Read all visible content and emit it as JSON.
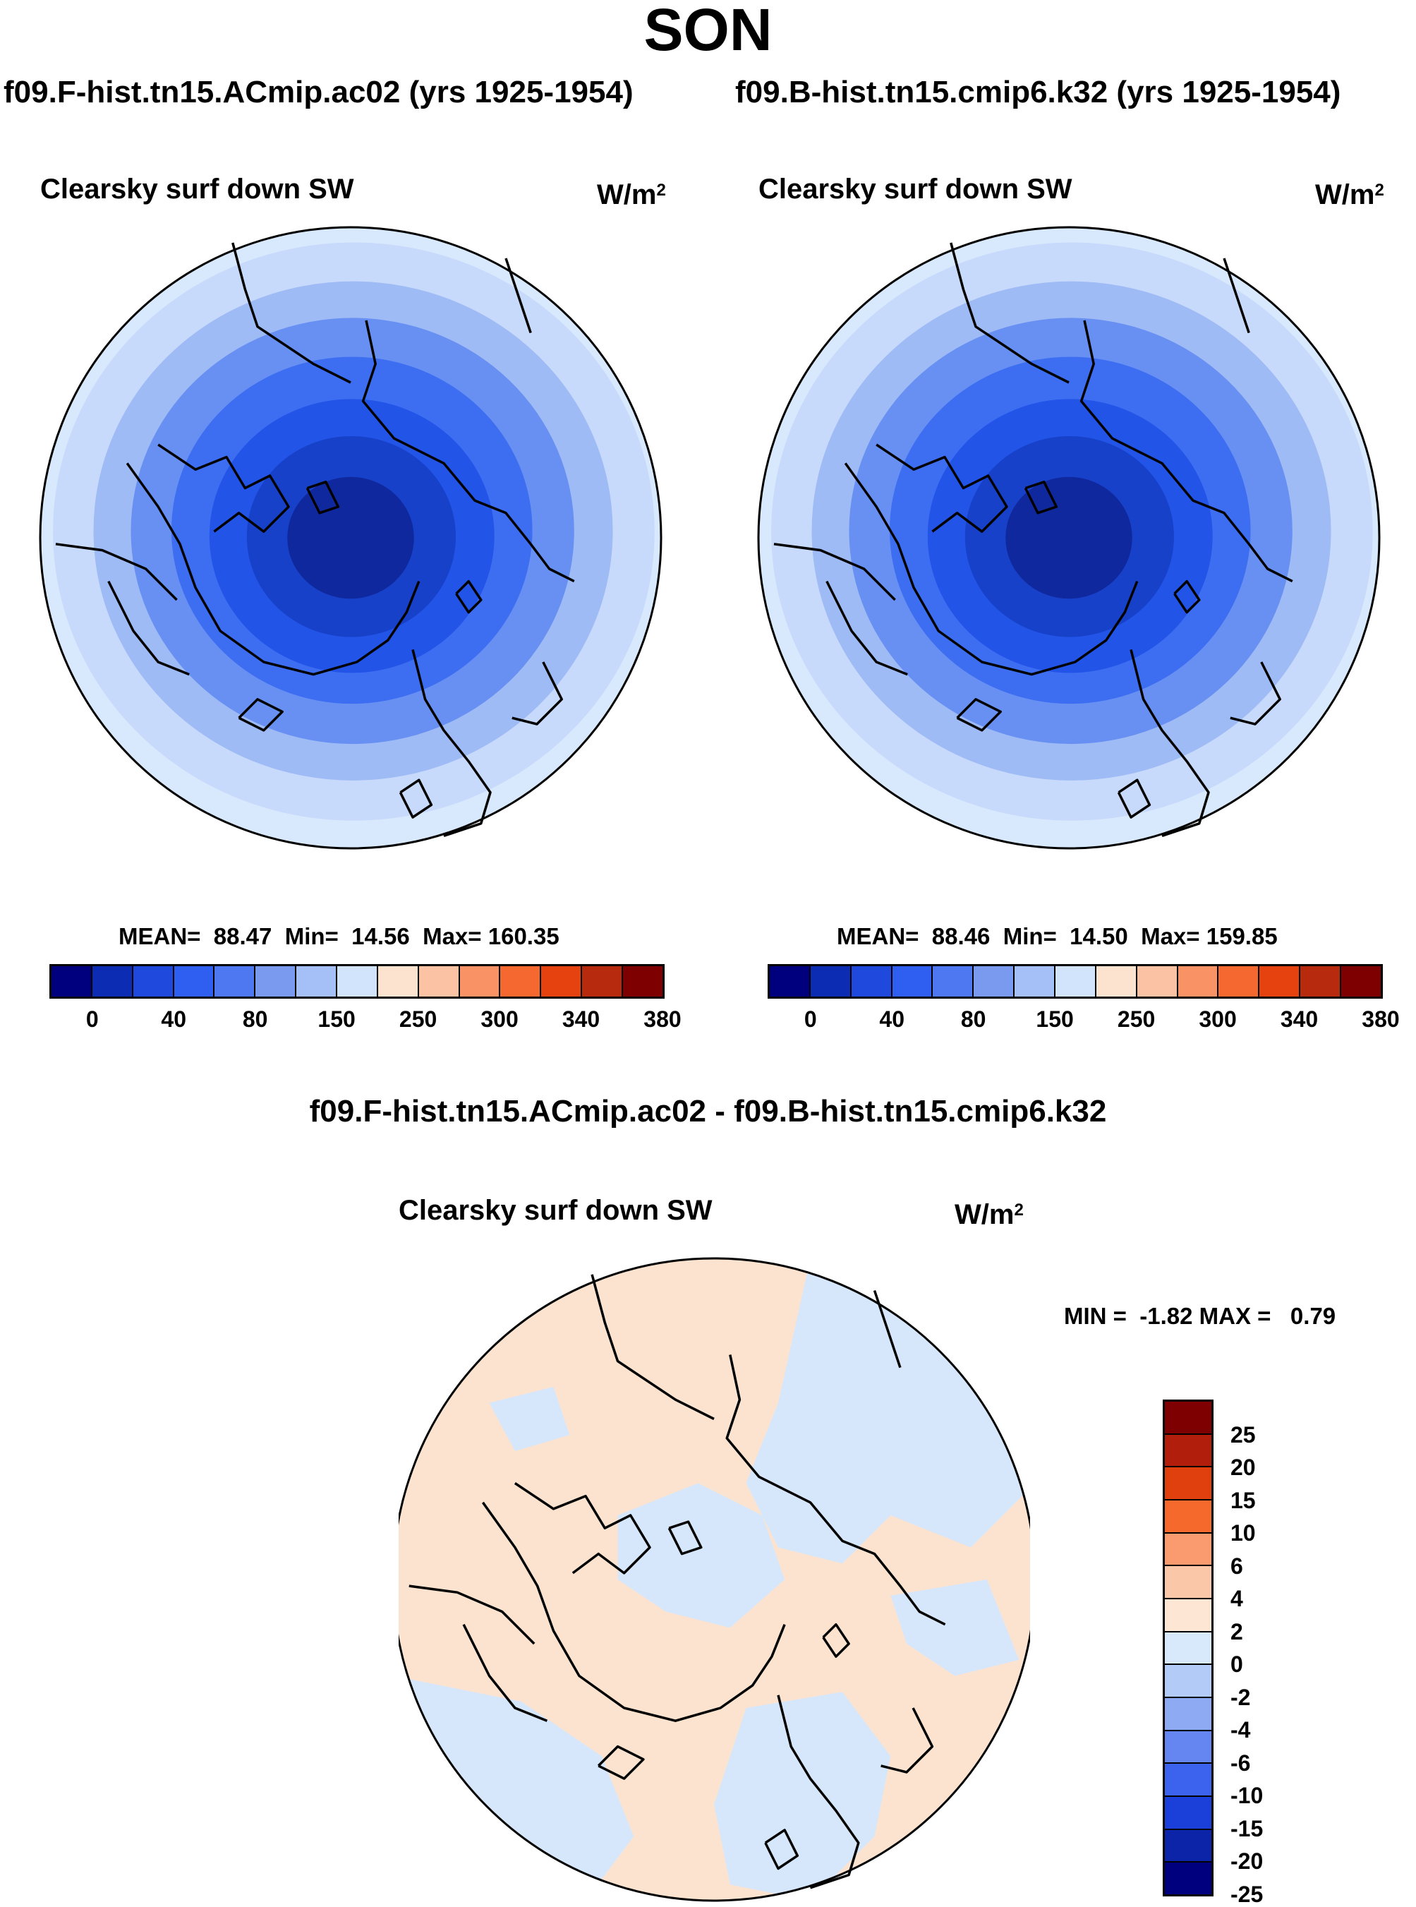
{
  "season": "SON",
  "panels": [
    {
      "title": "f09.F-hist.tn15.ACmip.ac02 (yrs 1925-1954)",
      "variable": "Clearsky surf down SW",
      "units": "W/m",
      "units_sup": "2",
      "stats": {
        "mean_label": "MEAN=",
        "mean": "88.47",
        "min_label": "Min=",
        "min": "14.56",
        "max_label": "Max=",
        "max": "160.35"
      },
      "field": {
        "type": "polar-radial",
        "ring_levels_from_center": [
          20,
          40,
          60,
          80,
          100,
          150,
          200
        ],
        "ring_colors": [
          "#10289e",
          "#1741c8",
          "#2254e8",
          "#3d6ef2",
          "#6890f2",
          "#9fbbf5",
          "#c8dafb",
          "#d9e9fd"
        ]
      }
    },
    {
      "title": "f09.B-hist.tn15.cmip6.k32 (yrs 1925-1954)",
      "variable": "Clearsky surf down SW",
      "units": "W/m",
      "units_sup": "2",
      "stats": {
        "mean_label": "MEAN=",
        "mean": "88.46",
        "min_label": "Min=",
        "min": "14.50",
        "max_label": "Max=",
        "max": "159.85"
      },
      "field": {
        "type": "polar-radial",
        "ring_levels_from_center": [
          20,
          40,
          60,
          80,
          100,
          150,
          200
        ],
        "ring_colors": [
          "#10289e",
          "#1741c8",
          "#2254e8",
          "#3d6ef2",
          "#6890f2",
          "#9fbbf5",
          "#c8dafb",
          "#d9e9fd"
        ]
      }
    }
  ],
  "top_colorbar": {
    "colors": [
      "#00007f",
      "#0b2cb3",
      "#1f48dd",
      "#2f5ff0",
      "#4d78f2",
      "#7a9af0",
      "#a5c0f7",
      "#d1e4fb",
      "#fce3cf",
      "#fbc2a3",
      "#f99365",
      "#f5682f",
      "#e5420f",
      "#b82a0d",
      "#7f0000"
    ],
    "tick_labels": [
      "0",
      "40",
      "80",
      "150",
      "250",
      "300",
      "340",
      "380"
    ]
  },
  "diff": {
    "title": "f09.F-hist.tn15.ACmip.ac02 - f09.B-hist.tn15.cmip6.k32",
    "variable": "Clearsky surf down SW",
    "units": "W/m",
    "units_sup": "2",
    "minmax": "MIN =  -1.82 MAX =   0.79",
    "base_color": "#fce3cf",
    "negative_color": "#d6e7fc"
  },
  "diff_colorbar": {
    "colors_top_to_bottom": [
      "#7f0000",
      "#b11f0c",
      "#e0400d",
      "#f5692d",
      "#f99b6e",
      "#fbc7a9",
      "#fde6d3",
      "#d9e9fc",
      "#b3cbf7",
      "#8daaf3",
      "#6586f0",
      "#3b63ee",
      "#1b40da",
      "#0b24a8",
      "#00007f"
    ],
    "tick_labels_top_to_bottom": [
      "25",
      "20",
      "15",
      "10",
      "6",
      "4",
      "2",
      "0",
      "-2",
      "-4",
      "-6",
      "-10",
      "-15",
      "-20",
      "-25"
    ]
  }
}
